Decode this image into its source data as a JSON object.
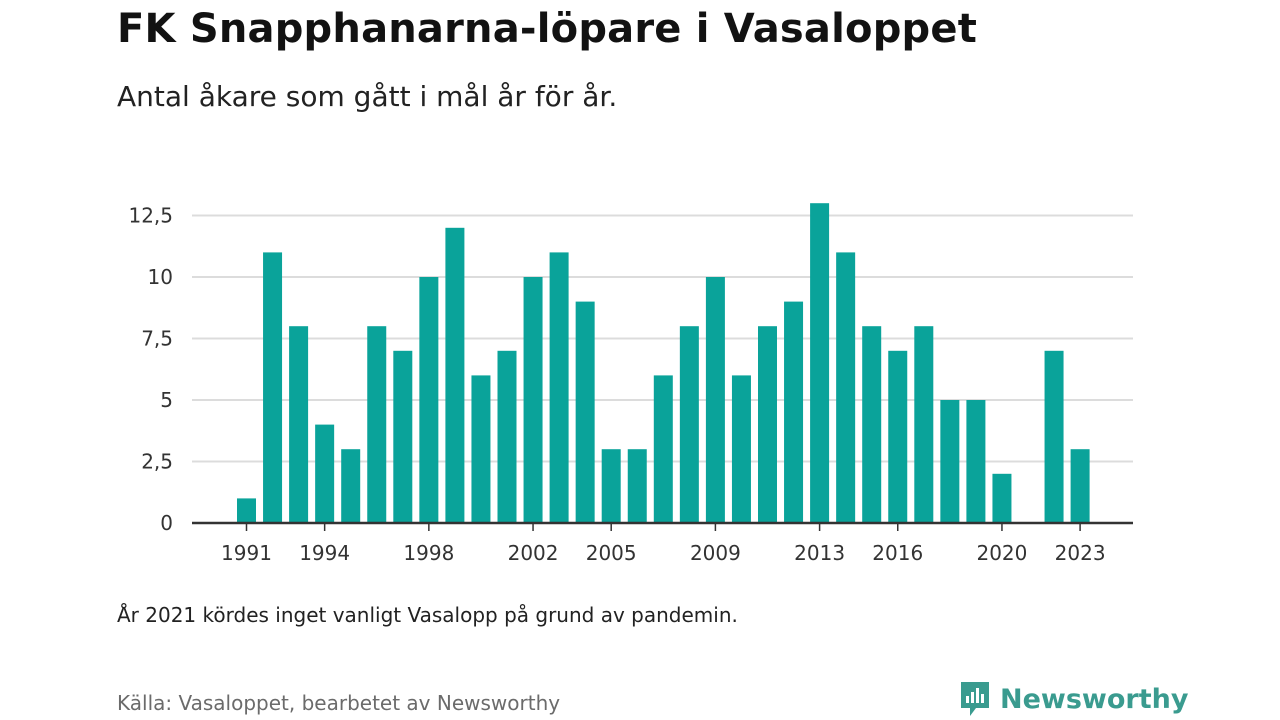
{
  "header": {
    "title": "FK Snapphanarna-löpare i Vasaloppet",
    "subtitle": "Antal åkare som gått i mål år för år."
  },
  "footer": {
    "note": "År 2021 kördes inget vanligt Vasalopp på grund av pandemin.",
    "source": "Källa: Vasaloppet, bearbetet av Newsworthy",
    "brand": "Newsworthy",
    "brand_icon": "newsworthy-logo-icon"
  },
  "colors": {
    "bar": "#0aa39a",
    "grid": "#dcdcdc",
    "axis": "#333333",
    "brand": "#3a9b8f"
  },
  "chart_data": {
    "type": "bar",
    "categories": [
      1991,
      1992,
      1993,
      1994,
      1995,
      1996,
      1997,
      1998,
      1999,
      2000,
      2001,
      2002,
      2003,
      2004,
      2005,
      2006,
      2007,
      2008,
      2009,
      2010,
      2011,
      2012,
      2013,
      2014,
      2015,
      2016,
      2017,
      2018,
      2019,
      2020,
      2021,
      2022,
      2023
    ],
    "values": [
      1,
      11,
      8,
      4,
      3,
      8,
      7,
      10,
      12,
      6,
      7,
      10,
      11,
      9,
      3,
      3,
      6,
      8,
      10,
      6,
      8,
      9,
      13,
      11,
      8,
      7,
      8,
      5,
      5,
      2,
      null,
      7,
      3
    ],
    "y_ticks": [
      0,
      2.5,
      5,
      7.5,
      10,
      12.5
    ],
    "y_tick_labels": [
      "0",
      "2,5",
      "5",
      "7,5",
      "10",
      "12,5"
    ],
    "x_tick_labels": [
      "1991",
      "1994",
      "1998",
      "2002",
      "2005",
      "2009",
      "2013",
      "2016",
      "2020",
      "2023"
    ],
    "ylim": [
      0,
      13
    ],
    "xlim": [
      1990,
      1992.5
    ],
    "grid": true,
    "title": "FK Snapphanarna-löpare i Vasaloppet",
    "xlabel": "",
    "ylabel": ""
  }
}
